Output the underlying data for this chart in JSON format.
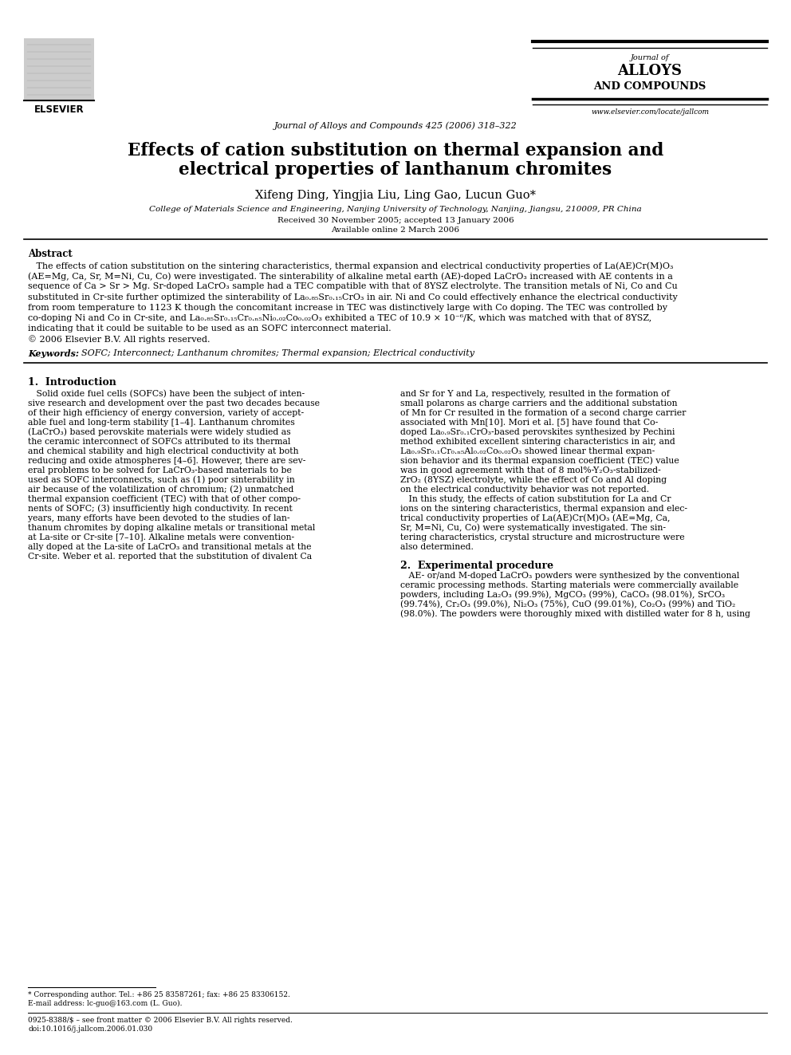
{
  "title_line1": "Effects of cation substitution on thermal expansion and",
  "title_line2": "electrical properties of lanthanum chromites",
  "authors": "Xifeng Ding, Yingjia Liu, Ling Gao, Lucun Guo*",
  "affiliation": "College of Materials Science and Engineering, Nanjing University of Technology, Nanjing, Jiangsu, 210009, PR China",
  "received": "Received 30 November 2005; accepted 13 January 2006",
  "available": "Available online 2 March 2006",
  "journal_name": "Journal of Alloys and Compounds 425 (2006) 318–322",
  "journal_logo_text1": "Journal of",
  "journal_logo_text2": "ALLOYS",
  "journal_logo_text3": "AND COMPOUNDS",
  "elsevier_text": "ELSEVIER",
  "website": "www.elsevier.com/locate/jallcom",
  "abstract_title": "Abstract",
  "abstract_body": "   The effects of cation substitution on the sintering characteristics, thermal expansion and electrical conductivity properties of La(AE)Cr(M)O₃\n(AE=Mg, Ca, Sr, M=Ni, Cu, Co) were investigated. The sinterability of alkaline metal earth (AE)-doped LaCrO₃ increased with AE contents in a\nsequence of Ca > Sr > Mg. Sr-doped LaCrO₃ sample had a TEC compatible with that of 8YSZ electrolyte. The transition metals of Ni, Co and Cu\nsubstituted in Cr-site further optimized the sinterability of La₀.₈₅Sr₀.₁₅CrO₃ in air. Ni and Co could effectively enhance the electrical conductivity\nfrom room temperature to 1123 K though the concomitant increase in TEC was distinctively large with Co doping. The TEC was controlled by\nco-doping Ni and Co in Cr-site, and La₀.₈₅Sr₀.₁₅Cr₀.ₙ₅Ni₀.₀₂Co₀.₀₂O₃ exhibited a TEC of 10.9 × 10⁻⁶/K, which was matched with that of 8YSZ,\nindicating that it could be suitable to be used as an SOFC interconnect material.\n© 2006 Elsevier B.V. All rights reserved.",
  "keywords_label": "Keywords:",
  "keywords_body": "  SOFC; Interconnect; Lanthanum chromites; Thermal expansion; Electrical conductivity",
  "section1_title": "1.  Introduction",
  "section1_indent": "   Solid oxide fuel cells (SOFCs) have been the subject of inten-\nsive research and development over the past two decades because\nof their high efficiency of energy conversion, variety of accept-\nable fuel and long-term stability [1–4]. Lanthanum chromites\n(LaCrO₃) based perovskite materials were widely studied as\nthe ceramic interconnect of SOFCs attributed to its thermal\nand chemical stability and high electrical conductivity at both\nreducing and oxide atmospheres [4–6]. However, there are sev-\neral problems to be solved for LaCrO₃-based materials to be\nused as SOFC interconnects, such as (1) poor sinterability in\nair because of the volatilization of chromium; (2) unmatched\nthermal expansion coefficient (TEC) with that of other compo-\nnents of SOFC; (3) insufficiently high conductivity. In recent\nyears, many efforts have been devoted to the studies of lan-\nthanum chromites by doping alkaline metals or transitional metal\nat La-site or Cr-site [7–10]. Alkaline metals were convention-\nally doped at the La-site of LaCrO₃ and transitional metals at the\nCr-site. Weber et al. reported that the substitution of divalent Ca",
  "section1_col2": "and Sr for Y and La, respectively, resulted in the formation of\nsmall polarons as charge carriers and the additional substation\nof Mn for Cr resulted in the formation of a second charge carrier\nassociated with Mn[10]. Mori et al. [5] have found that Co-\ndoped La₀.₉Sr₀.₁CrO₃-based perovskites synthesized by Pechini\nmethod exhibited excellent sintering characteristics in air, and\nLa₀.₉Sr₀.₁Cr₀.ₙ₅Al₀.₀₂Co₀.₀₂O₃ showed linear thermal expan-\nsion behavior and its thermal expansion coefficient (TEC) value\nwas in good agreement with that of 8 mol%-Y₂O₃-stabilized-\nZrO₂ (8YSZ) electrolyte, while the effect of Co and Al doping\non the electrical conductivity behavior was not reported.\n   In this study, the effects of cation substitution for La and Cr\nions on the sintering characteristics, thermal expansion and elec-\ntrical conductivity properties of La(AE)Cr(M)O₃ (AE=Mg, Ca,\nSr, M=Ni, Cu, Co) were systematically investigated. The sin-\ntering characteristics, crystal structure and microstructure were\nalso determined.",
  "section2_title": "2.  Experimental procedure",
  "section2_col2": "   AE- or/and M-doped LaCrO₃ powders were synthesized by the conventional\nceramic processing methods. Starting materials were commercially available\npowders, including La₂O₃ (99.9%), MgCO₃ (99%), CaCO₃ (98.01%), SrCO₃\n(99.74%), Cr₂O₃ (99.0%), Ni₂O₃ (75%), CuO (99.01%), Co₂O₃ (99%) and TiO₂\n(98.0%). The powders were thoroughly mixed with distilled water for 8 h, using",
  "footnote1": "* Corresponding author. Tel.: +86 25 83587261; fax: +86 25 83306152.",
  "footnote2": "E-mail address: lc-guo@163.com (L. Guo).",
  "footnote3": "0925-8388/$ – see front matter © 2006 Elsevier B.V. All rights reserved.",
  "footnote4": "doi:10.1016/j.jallcom.2006.01.030",
  "bg_color": "#ffffff",
  "text_color": "#000000"
}
